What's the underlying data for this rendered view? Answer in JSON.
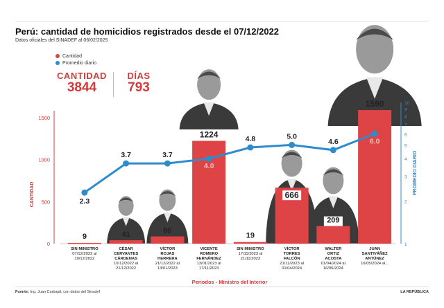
{
  "header": {
    "title": "Perú: cantidad de homicidios registrados desde el 07/12/2022",
    "subtitle": "Datos oficiales del SINADEF al 06/02/2025"
  },
  "legend": {
    "cantidad": "Cantidad",
    "promedio": "Promedio diario"
  },
  "kpis": {
    "cantidad_label": "CANTIDAD",
    "cantidad_value": "3844",
    "dias_label": "DÍAS",
    "dias_value": "793"
  },
  "footer": {
    "source_bold": "Fuente:",
    "source_text": " Ing. Juan Carbajal, con datos del Sinadef",
    "brand": "LA REPÚBLICA"
  },
  "colors": {
    "bar": "#de4446",
    "line": "#2e8bcc",
    "left_axis": "#d33b3b",
    "right_axis": "#2e8bcc"
  },
  "chart_data": {
    "type": "bar",
    "xlabel": "Periodos - Ministro del Interior",
    "ylabel": "CANTIDAD",
    "y2label": "PROMEDIO DIARIO",
    "ylim": [
      0,
      1700
    ],
    "yticks": [
      0,
      500,
      1000,
      1500
    ],
    "y2ticks": [
      1,
      2,
      3,
      4,
      5,
      6,
      7,
      8,
      9,
      10
    ],
    "y2scale": "log",
    "categories": [
      {
        "name": [
          "SIN MINISTRO"
        ],
        "period": [
          "07/12/2022 al",
          "10/12/2022"
        ]
      },
      {
        "name": [
          "CÉSAR",
          "CERVANTES",
          "CÁRDENAS"
        ],
        "period": [
          "10/12/2022 al",
          "21/12/2022"
        ]
      },
      {
        "name": [
          "VÍCTOR",
          "ROJAS",
          "HERRERA"
        ],
        "period": [
          "21/12/2022 al",
          "13/01/2023"
        ]
      },
      {
        "name": [
          "VICENTE",
          "ROMERO",
          "FERNÁNDEZ"
        ],
        "period": [
          "13/01/2023 al",
          "17/11/2023"
        ]
      },
      {
        "name": [
          "SIN MINISTRO"
        ],
        "period": [
          "17/11/2023 al",
          "21/11/2023"
        ]
      },
      {
        "name": [
          "VÍCTOR",
          "TORRES",
          "FALCÓN"
        ],
        "period": [
          "21/11/2023 al",
          "01/04/2024"
        ]
      },
      {
        "name": [
          "WALTER",
          "ORTIZ",
          "ACOSTA"
        ],
        "period": [
          "01/04/2024 al",
          "16/05/2024"
        ]
      },
      {
        "name": [
          "JUAN",
          "SANTIVÁÑEZ",
          "ANTÚNEZ"
        ],
        "period": [
          "16/05/2024 al..."
        ]
      }
    ],
    "series": [
      {
        "name": "Cantidad",
        "type": "bar",
        "values": [
          9,
          41,
          86,
          1224,
          19,
          666,
          209,
          1590
        ]
      },
      {
        "name": "Promedio diario",
        "type": "line",
        "values": [
          2.3,
          3.7,
          3.7,
          4.0,
          4.8,
          5.0,
          4.6,
          6.0
        ]
      }
    ]
  }
}
